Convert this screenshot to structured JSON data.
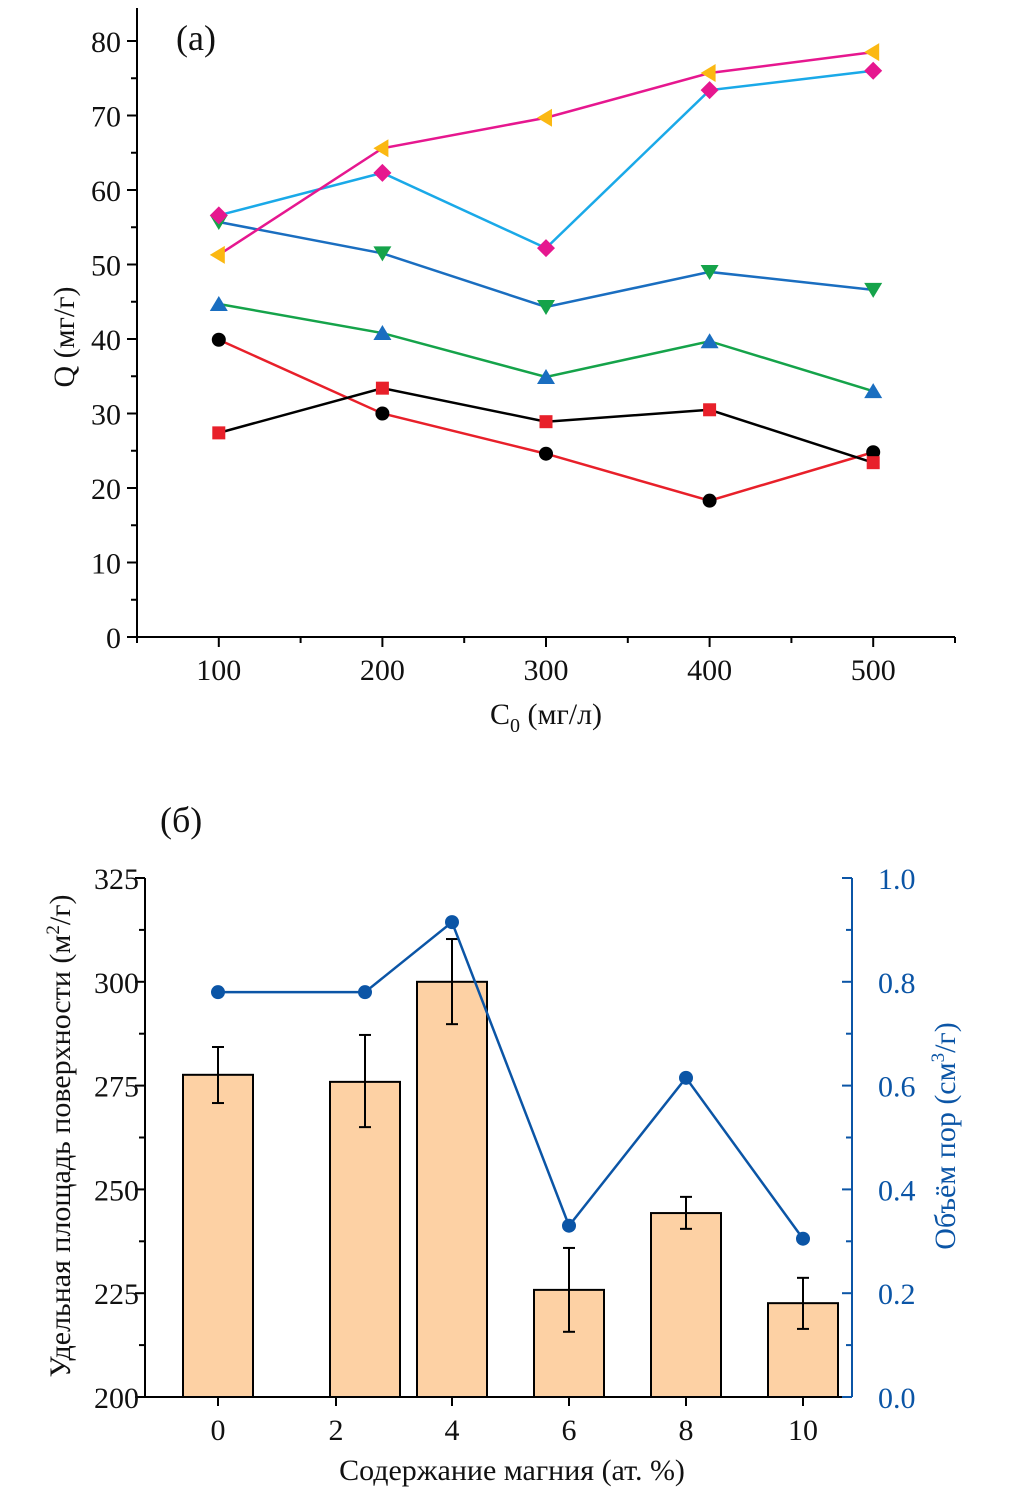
{
  "chart_data": [
    {
      "type": "line",
      "panel_label": "(a)",
      "title": "",
      "xlabel": "C",
      "xlabel_subscript": "0",
      "xlabel_units": " (мг/л)",
      "ylabel": "Q (мг/г)",
      "xlim": [
        50,
        550
      ],
      "ylim": [
        0,
        80
      ],
      "x_ticks": [
        100,
        200,
        300,
        400,
        500
      ],
      "x_tick_labels": [
        "100",
        "200",
        "300",
        "400",
        "500"
      ],
      "x_minor_ticks": [
        50,
        150,
        250,
        350,
        450,
        550
      ],
      "y_ticks": [
        0,
        10,
        20,
        30,
        40,
        50,
        60,
        70,
        80
      ],
      "y_tick_labels": [
        "0",
        "10",
        "20",
        "30",
        "40",
        "50",
        "60",
        "70",
        "80"
      ],
      "y_minor_step": 5,
      "grid": false,
      "legend": "none",
      "x": [
        100,
        200,
        300,
        400,
        500
      ],
      "series": [
        {
          "name": "series-1",
          "marker": "circle",
          "marker_color": "#000000",
          "line_color": "#e8202a",
          "values": [
            39.9,
            30.0,
            24.6,
            18.3,
            24.8
          ]
        },
        {
          "name": "series-2",
          "marker": "square",
          "marker_color": "#e8202a",
          "line_color": "#000000",
          "values": [
            27.4,
            33.4,
            28.9,
            30.5,
            23.4
          ]
        },
        {
          "name": "series-3",
          "marker": "triangle-up",
          "marker_color": "#1a6ec0",
          "line_color": "#15a34a",
          "values": [
            44.7,
            40.8,
            34.9,
            39.7,
            33.0
          ]
        },
        {
          "name": "series-4",
          "marker": "triangle-down",
          "marker_color": "#15a34a",
          "line_color": "#1a6ec0",
          "values": [
            55.7,
            51.5,
            44.3,
            49.0,
            46.6
          ]
        },
        {
          "name": "series-5",
          "marker": "diamond",
          "marker_color": "#e6178f",
          "line_color": "#1aa9e8",
          "values": [
            56.6,
            62.3,
            52.2,
            73.4,
            76.0
          ]
        },
        {
          "name": "series-6",
          "marker": "triangle-left",
          "marker_color": "#fbb812",
          "line_color": "#e6178f",
          "values": [
            51.3,
            65.6,
            69.7,
            75.7,
            78.5
          ]
        }
      ]
    },
    {
      "type": "bar",
      "panel_label": "(б)",
      "title": "",
      "xlabel": "Содержание магния (ат. %)",
      "ylabel": "Удельная площадь поверхности (м²/г)",
      "ylabel_main": "Удельная площадь поверхности (м",
      "ylabel_sup": "2",
      "ylabel_end": "/г)",
      "y2label_main": "Объём пор (см",
      "y2label_sup": "3",
      "y2label_end": "/г)",
      "y2label": "Объём пор (см³/г)",
      "categories": [
        "0",
        "2",
        "4",
        "6",
        "8",
        "10"
      ],
      "ylim": [
        200,
        325
      ],
      "y_ticks": [
        200,
        225,
        250,
        275,
        300,
        325
      ],
      "y_tick_labels": [
        "200",
        "225",
        "250",
        "275",
        "300",
        "325"
      ],
      "y2lim": [
        0,
        1.0
      ],
      "y2_ticks": [
        0,
        0.2,
        0.4,
        0.6,
        0.8,
        1.0
      ],
      "y2_tick_labels": [
        "0.0",
        "0.2",
        "0.4",
        "0.6",
        "0.8",
        "1.0"
      ],
      "grid": false,
      "legend": "none",
      "bar_color": "#fdd1a4",
      "line_color": "#0b55a6",
      "series": [
        {
          "name": "surface-area",
          "axis": "left",
          "kind": "bar",
          "values": [
            277.6,
            275.9,
            300.0,
            225.8,
            244.3,
            222.6
          ],
          "error_upper": [
            284.3,
            287.2,
            310.3,
            235.9,
            248.2,
            228.7
          ],
          "error_lower": [
            270.8,
            265.0,
            289.8,
            215.7,
            240.5,
            216.4
          ]
        },
        {
          "name": "pore-volume",
          "axis": "right",
          "kind": "line-marker",
          "values": [
            0.78,
            0.78,
            0.915,
            0.33,
            0.615,
            0.305
          ]
        }
      ]
    }
  ]
}
